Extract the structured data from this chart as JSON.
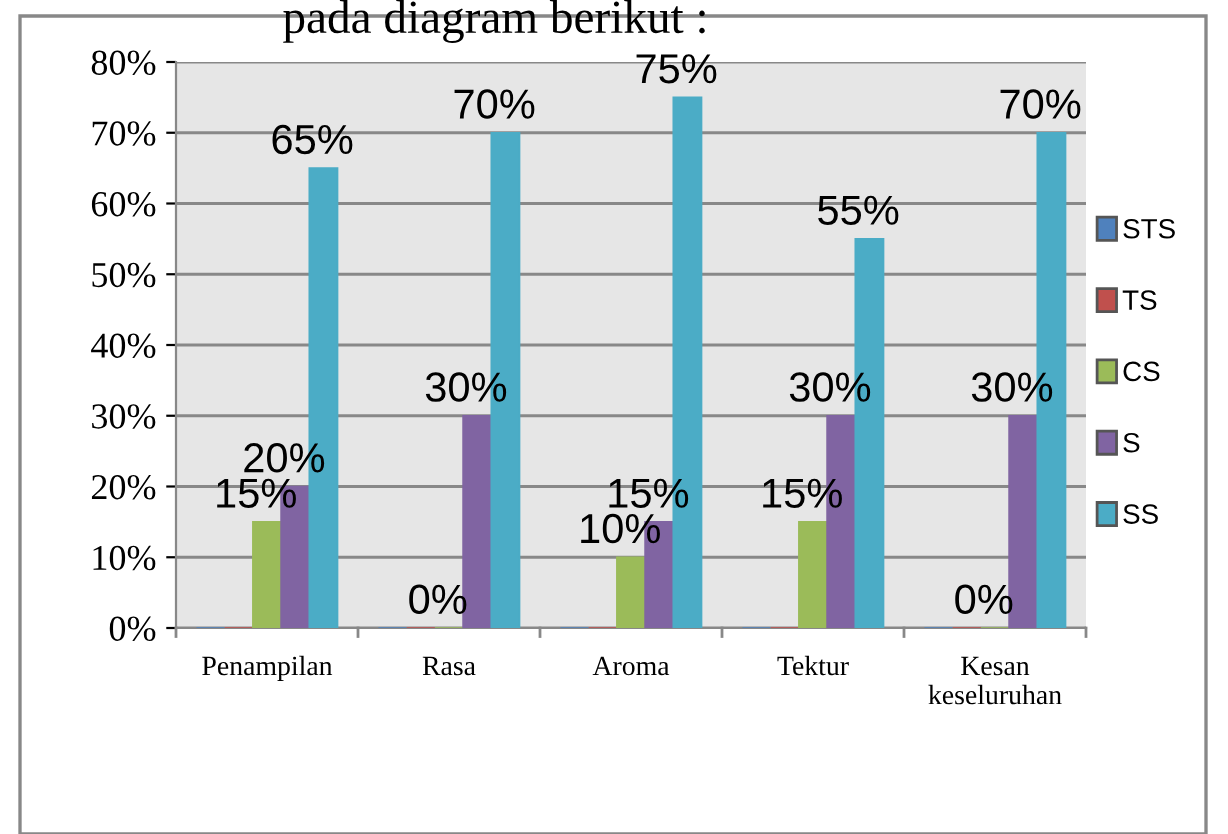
{
  "chart_data": {
    "type": "bar",
    "annotations": [
      "pada diagram berikut :"
    ],
    "categories": [
      "Penampilan",
      "Rasa",
      "Aroma",
      "Tektur",
      "Kesan\nkeseluruhan"
    ],
    "series": [
      {
        "name": "STS",
        "color": "#4f81bd",
        "values": [
          0,
          0,
          0,
          0,
          0
        ],
        "value_labels": [
          null,
          null,
          null,
          null,
          null
        ]
      },
      {
        "name": "TS",
        "color": "#c0504d",
        "values": [
          0,
          0,
          0,
          0,
          0
        ],
        "value_labels": [
          null,
          null,
          null,
          null,
          null
        ]
      },
      {
        "name": "CS",
        "color": "#9bbb59",
        "values": [
          15,
          0,
          10,
          15,
          0
        ],
        "value_labels": [
          "15%",
          "0%",
          "10%",
          "15%",
          "0%"
        ]
      },
      {
        "name": "S",
        "color": "#8064a2",
        "values": [
          20,
          30,
          15,
          30,
          30
        ],
        "value_labels": [
          "20%",
          "30%",
          "15%",
          "30%",
          "30%"
        ]
      },
      {
        "name": "SS",
        "color": "#4bacc6",
        "values": [
          65,
          70,
          75,
          55,
          70
        ],
        "value_labels": [
          "65%",
          "70%",
          "75%",
          "55%",
          "70%"
        ]
      }
    ],
    "ylim": [
      0,
      80
    ],
    "yticks": [
      {
        "value": 0,
        "label": "0%"
      },
      {
        "value": 10,
        "label": "10%"
      },
      {
        "value": 20,
        "label": "20%"
      },
      {
        "value": 30,
        "label": "30%"
      },
      {
        "value": 40,
        "label": "40%"
      },
      {
        "value": 50,
        "label": "50%"
      },
      {
        "value": 60,
        "label": "60%"
      },
      {
        "value": 70,
        "label": "70%"
      },
      {
        "value": 80,
        "label": "80%"
      }
    ],
    "grid": "y",
    "legend": "right"
  }
}
